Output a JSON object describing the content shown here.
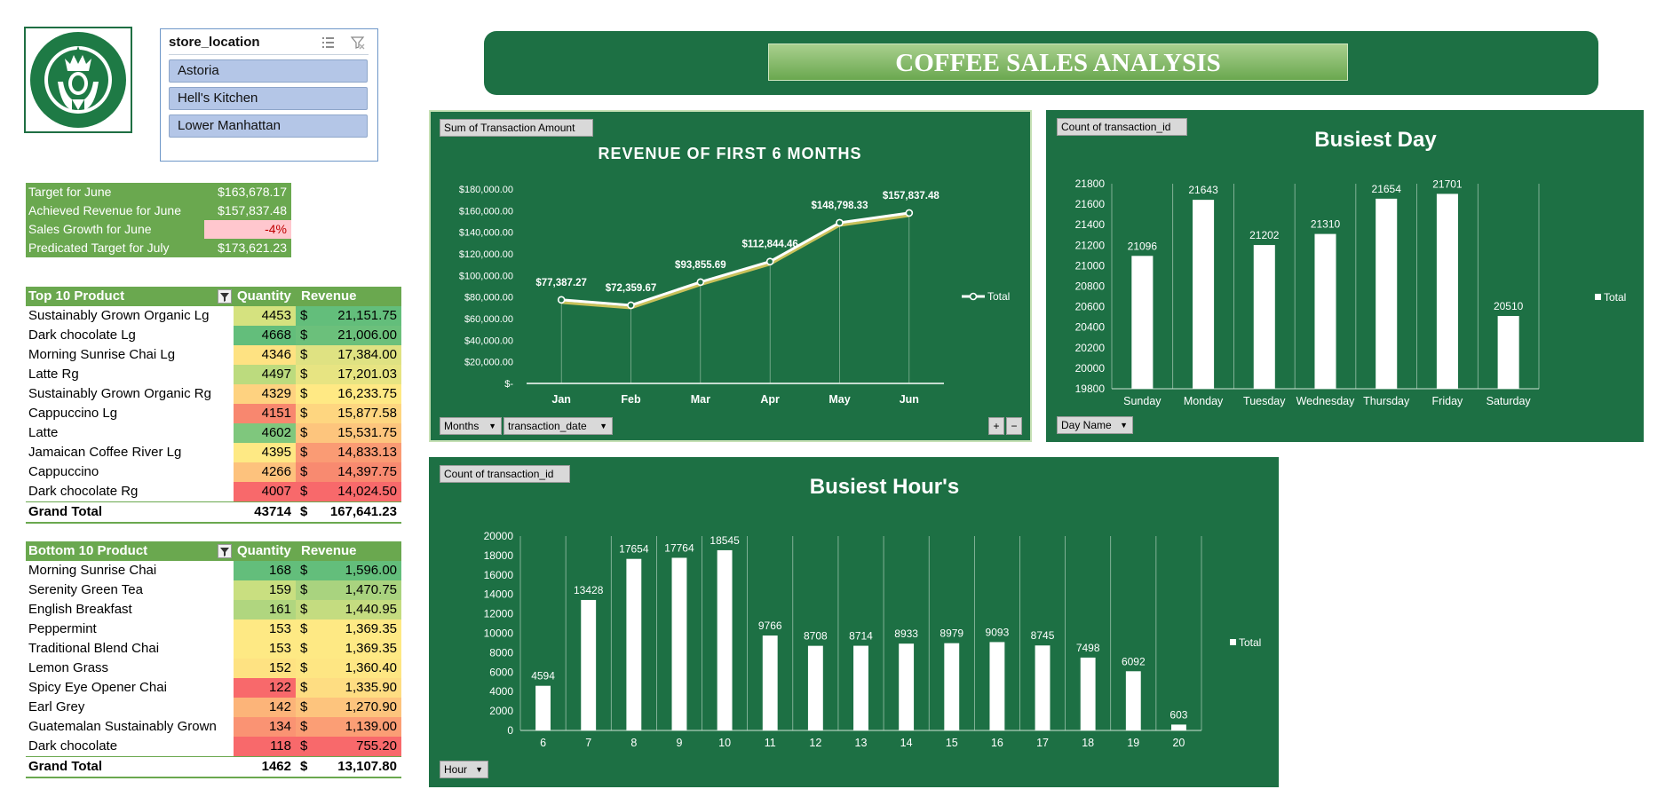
{
  "dashboard_title": "COFFEE SALES ANALYSIS",
  "colors": {
    "dark_green": "#1d7044",
    "medium_green": "#6aa84f",
    "light_blue": "#b4c6e7"
  },
  "slicer": {
    "title": "store_location",
    "items": [
      "Astoria",
      "Hell's Kitchen",
      "Lower Manhattan"
    ]
  },
  "kpi": [
    {
      "label": "Target for June",
      "value": "$163,678.17"
    },
    {
      "label": "Achieved Revenue for June",
      "value": "$157,837.48"
    },
    {
      "label": "Sales Growth for June",
      "value": "-4%"
    },
    {
      "label": "Predicated Target for July",
      "value": "$173,621.23"
    }
  ],
  "top10": {
    "headers": [
      "Top 10 Product",
      "Quantity",
      "Revenue"
    ],
    "rows": [
      {
        "name": "Sustainably Grown Organic Lg",
        "qty": "4453",
        "rev": "21,151.75",
        "qty_color": "#d5e27f",
        "rev_color": "#63be7b"
      },
      {
        "name": "Dark chocolate Lg",
        "qty": "4668",
        "rev": "21,006.00",
        "qty_color": "#63be7b",
        "rev_color": "#6bc07b"
      },
      {
        "name": "Morning Sunrise Chai Lg",
        "qty": "4346",
        "rev": "17,384.00",
        "qty_color": "#fee282",
        "rev_color": "#dfe282"
      },
      {
        "name": "Latte Rg",
        "qty": "4497",
        "rev": "17,201.03",
        "qty_color": "#bcdb7e",
        "rev_color": "#e7e482"
      },
      {
        "name": "Sustainably Grown Organic Rg",
        "qty": "4329",
        "rev": "16,233.75",
        "qty_color": "#fed280",
        "rev_color": "#ffe984"
      },
      {
        "name": "Cappuccino Lg",
        "qty": "4151",
        "rev": "15,877.58",
        "qty_color": "#f8876f",
        "rev_color": "#fed680"
      },
      {
        "name": "Latte",
        "qty": "4602",
        "rev": "15,531.75",
        "qty_color": "#7fc77d",
        "rev_color": "#fdc57d"
      },
      {
        "name": "Jamaican Coffee River Lg",
        "qty": "4395",
        "rev": "14,833.13",
        "qty_color": "#fee984",
        "rev_color": "#fa9b74"
      },
      {
        "name": "Cappuccino",
        "qty": "4266",
        "rev": "14,397.75",
        "qty_color": "#fdc27d",
        "rev_color": "#f88a70"
      },
      {
        "name": "Dark chocolate Rg",
        "qty": "4007",
        "rev": "14,024.50",
        "qty_color": "#f8696b",
        "rev_color": "#f8696b"
      }
    ],
    "grand_total": {
      "label": "Grand Total",
      "qty": "43714",
      "rev": "167,641.23"
    }
  },
  "bottom10": {
    "headers": [
      "Bottom 10 Product",
      "Quantity",
      "Revenue"
    ],
    "rows": [
      {
        "name": "Morning Sunrise Chai",
        "qty": "168",
        "rev": "1,596.00",
        "qty_color": "#63be7b",
        "rev_color": "#63be7b"
      },
      {
        "name": "Serenity Green Tea",
        "qty": "159",
        "rev": "1,470.75",
        "qty_color": "#c9df80",
        "rev_color": "#a9d37f"
      },
      {
        "name": "English Breakfast",
        "qty": "161",
        "rev": "1,440.95",
        "qty_color": "#b0d67f",
        "rev_color": "#c4dc80"
      },
      {
        "name": "Peppermint",
        "qty": "153",
        "rev": "1,369.35",
        "qty_color": "#fee984",
        "rev_color": "#fee984"
      },
      {
        "name": "Traditional Blend Chai",
        "qty": "153",
        "rev": "1,369.35",
        "qty_color": "#fee984",
        "rev_color": "#fee984"
      },
      {
        "name": "Lemon Grass",
        "qty": "152",
        "rev": "1,360.40",
        "qty_color": "#fee282",
        "rev_color": "#fee683"
      },
      {
        "name": "Spicy Eye Opener Chai",
        "qty": "122",
        "rev": "1,335.90",
        "qty_color": "#f8696b",
        "rev_color": "#fedd82"
      },
      {
        "name": "Earl Grey",
        "qty": "142",
        "rev": "1,270.90",
        "qty_color": "#fcb479",
        "rev_color": "#fdc47d"
      },
      {
        "name": "Guatemalan Sustainably Grown",
        "qty": "134",
        "rev": "1,139.00",
        "qty_color": "#fa9373",
        "rev_color": "#fb9e75"
      },
      {
        "name": "Dark chocolate",
        "qty": "118",
        "rev": "755.20",
        "qty_color": "#f8696b",
        "rev_color": "#f8696b"
      }
    ],
    "grand_total": {
      "label": "Grand Total",
      "qty": "1462",
      "rev": "13,107.80"
    }
  },
  "currency_symbol": "$",
  "revenue_panel": {
    "field_button": "Sum of Transaction Amount",
    "filter_buttons": [
      "Months",
      "transaction_date"
    ],
    "plus": "+",
    "minus": "−"
  },
  "day_panel": {
    "field_button": "Count of transaction_id",
    "filter_button": "Day Name"
  },
  "hour_panel": {
    "field_button": "Count of transaction_id",
    "filter_button": "Hour"
  },
  "chart_data": [
    {
      "type": "line",
      "title": "REVENUE OF FIRST 6 MONTHS",
      "categories": [
        "Jan",
        "Feb",
        "Mar",
        "Apr",
        "May",
        "Jun"
      ],
      "series": [
        {
          "name": "Total",
          "values": [
            77387.27,
            72359.67,
            93855.69,
            112844.46,
            148798.33,
            157837.48
          ]
        }
      ],
      "data_labels": [
        "$77,387.27",
        "$72,359.67",
        "$93,855.69",
        "$112,844.46",
        "$148,798.33",
        "$157,837.48"
      ],
      "y_ticks": [
        "$-",
        "$20,000.00",
        "$40,000.00",
        "$60,000.00",
        "$80,000.00",
        "$100,000.00",
        "$120,000.00",
        "$140,000.00",
        "$160,000.00",
        "$180,000.00"
      ],
      "ylim": [
        0,
        180000
      ],
      "legend": "right",
      "grid": false
    },
    {
      "type": "bar",
      "title": "Busiest Day",
      "categories": [
        "Sunday",
        "Monday",
        "Tuesday",
        "Wednesday",
        "Thursday",
        "Friday",
        "Saturday"
      ],
      "series": [
        {
          "name": "Total",
          "values": [
            21096,
            21643,
            21202,
            21310,
            21654,
            21701,
            20510
          ]
        }
      ],
      "y_ticks": [
        "19800",
        "20000",
        "20200",
        "20400",
        "20600",
        "20800",
        "21000",
        "21200",
        "21400",
        "21600",
        "21800"
      ],
      "ylim": [
        19800,
        21800
      ],
      "legend": "right",
      "grid": false
    },
    {
      "type": "bar",
      "title": "Busiest Hour's",
      "categories": [
        "6",
        "7",
        "8",
        "9",
        "10",
        "11",
        "12",
        "13",
        "14",
        "15",
        "16",
        "17",
        "18",
        "19",
        "20"
      ],
      "series": [
        {
          "name": "Total",
          "values": [
            4594,
            13428,
            17654,
            17764,
            18545,
            9766,
            8708,
            8714,
            8933,
            8979,
            9093,
            8745,
            7498,
            6092,
            603
          ]
        }
      ],
      "y_ticks": [
        "0",
        "2000",
        "4000",
        "6000",
        "8000",
        "10000",
        "12000",
        "14000",
        "16000",
        "18000",
        "20000"
      ],
      "ylim": [
        0,
        20000
      ],
      "legend": "right",
      "grid": false
    }
  ]
}
